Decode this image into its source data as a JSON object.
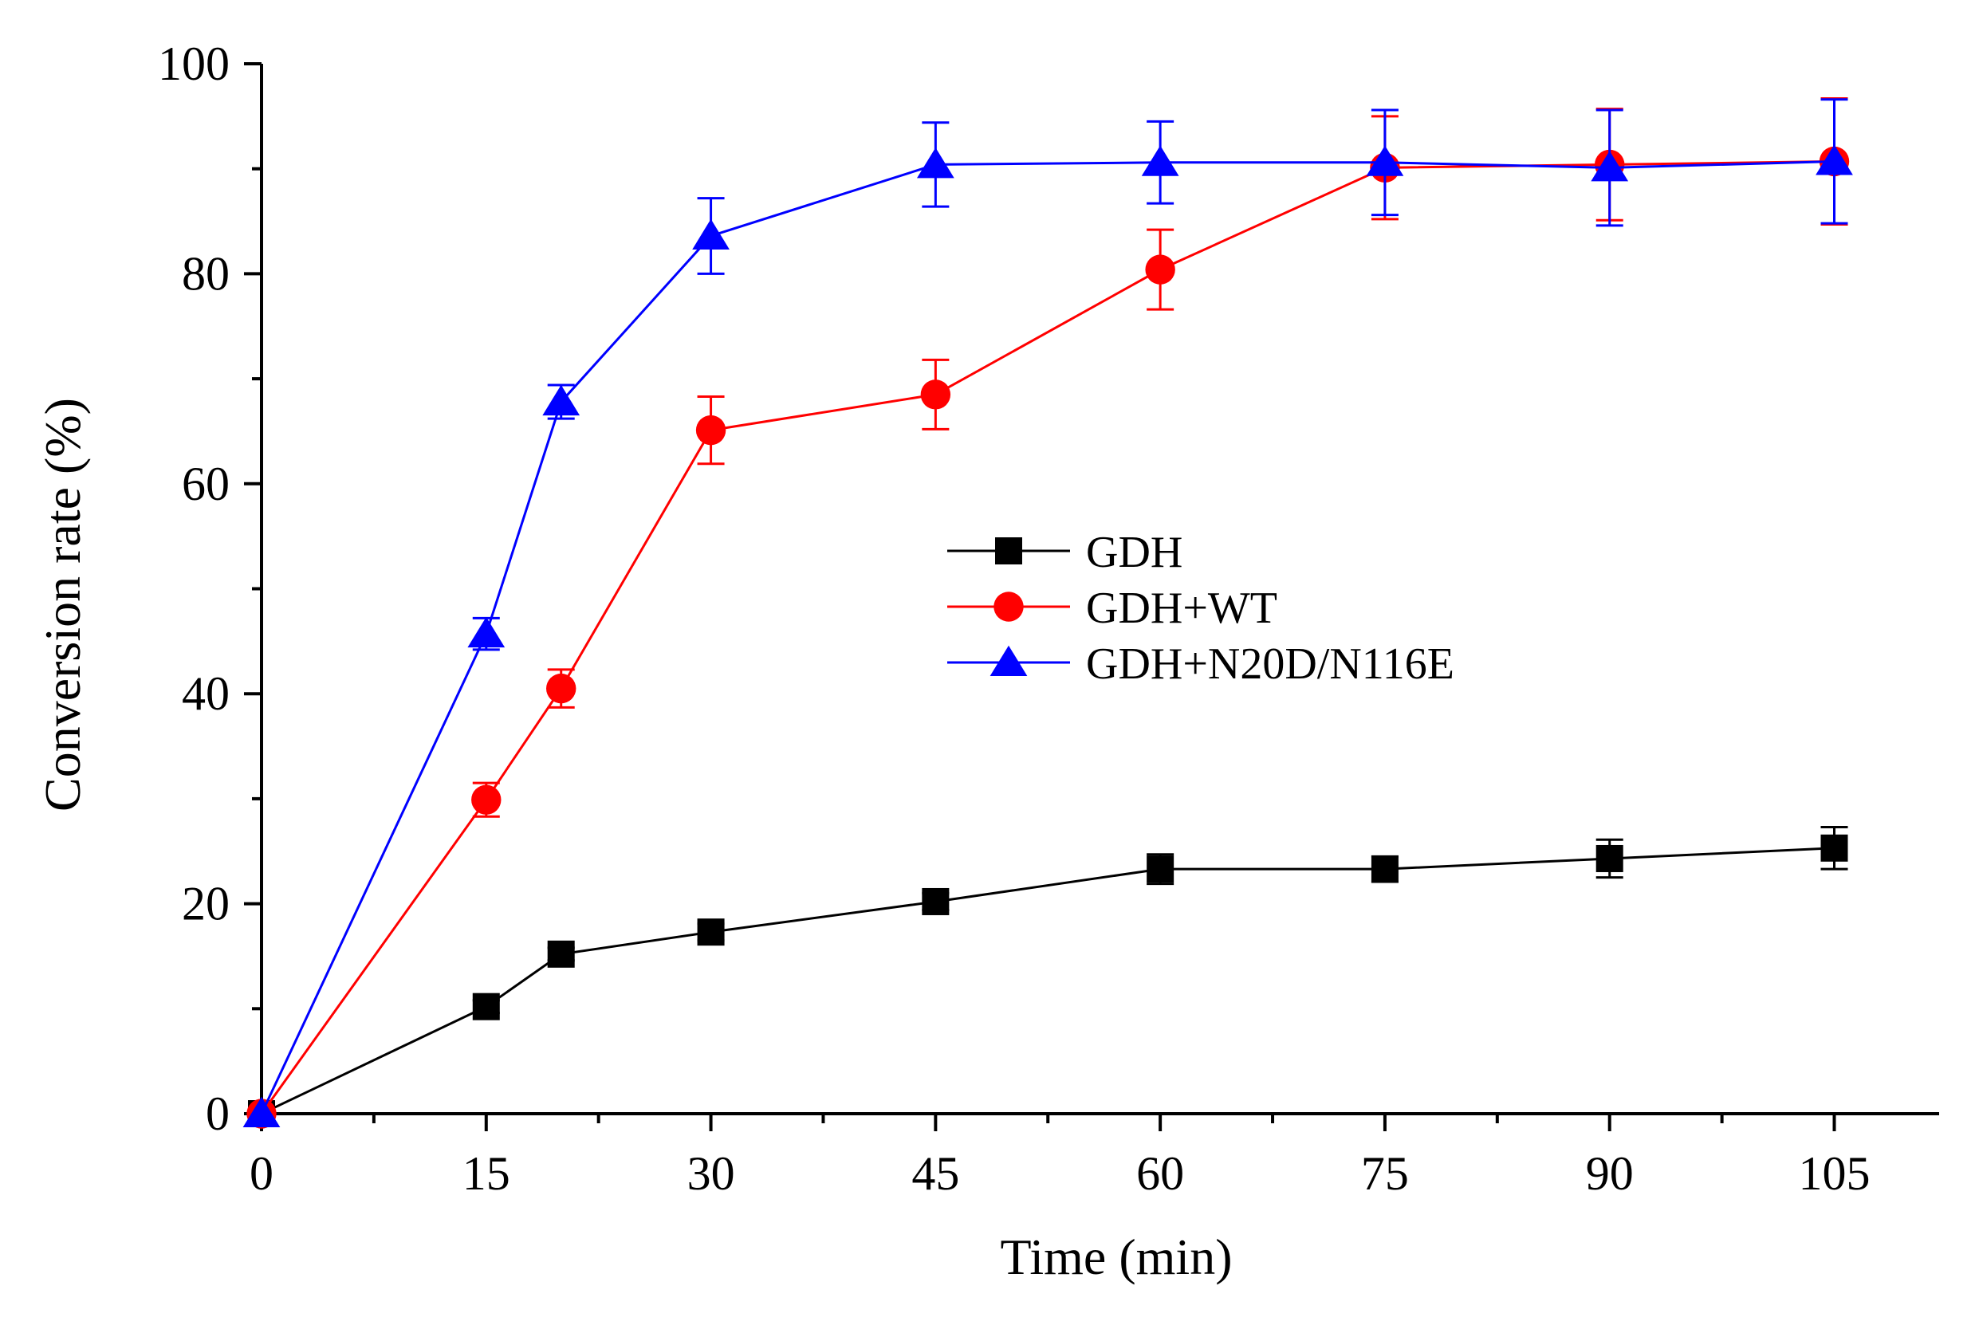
{
  "chart_data": {
    "type": "line",
    "title": "",
    "xlabel": "Time (min)",
    "ylabel": "Conversion rate (%)",
    "xlim": [
      0,
      112
    ],
    "ylim": [
      0,
      100
    ],
    "xticks": [
      0,
      15,
      30,
      45,
      60,
      75,
      90,
      105
    ],
    "yticks": [
      0,
      20,
      40,
      60,
      80,
      100
    ],
    "x": [
      0,
      15,
      20,
      30,
      45,
      60,
      75,
      90,
      105
    ],
    "legend_position": "center-right",
    "series": [
      {
        "name": "GDH",
        "color": "#000000",
        "marker": "square",
        "values": [
          0,
          10.2,
          15.2,
          17.3,
          20.2,
          23.3,
          23.3,
          24.3,
          25.3
        ],
        "errors": [
          0,
          0.6,
          0.6,
          0.8,
          0.8,
          1.4,
          1.2,
          1.8,
          2.0
        ]
      },
      {
        "name": "GDH+WT",
        "color": "#ff0000",
        "marker": "circle",
        "values": [
          0,
          29.9,
          40.5,
          65.1,
          68.5,
          80.4,
          90.1,
          90.4,
          90.7
        ],
        "errors": [
          0,
          1.6,
          1.8,
          3.2,
          3.3,
          3.8,
          4.9,
          5.3,
          6.0
        ]
      },
      {
        "name": "GDH+N20D/N116E",
        "color": "#0000ff",
        "marker": "triangle",
        "values": [
          0,
          45.7,
          67.8,
          83.6,
          90.4,
          90.6,
          90.6,
          90.1,
          90.7
        ],
        "errors": [
          0,
          1.5,
          1.6,
          3.6,
          4.0,
          3.9,
          5.0,
          5.5,
          5.9
        ]
      }
    ]
  }
}
